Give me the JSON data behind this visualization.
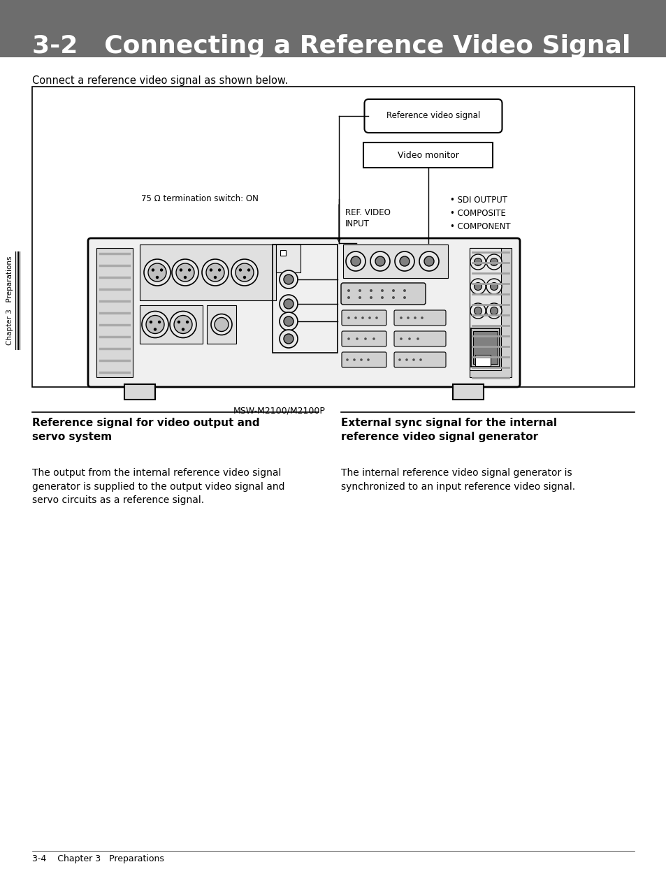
{
  "title": "3-2   Connecting a Reference Video Signal",
  "title_bg": "#6d6d6d",
  "title_color": "#ffffff",
  "page_bg": "#ffffff",
  "intro_text": "Connect a reference video signal as shown below.",
  "label_ref_signal": "Reference video signal",
  "label_video_monitor": "Video monitor",
  "label_75ohm": "75 Ω termination switch: ON",
  "label_ref_video_input": "REF. VIDEO\nINPUT",
  "label_sdi": "• SDI OUTPUT\n• COMPOSITE\n• COMPONENT",
  "label_model": "MSW-M2100/M2100P",
  "section1_title": "Reference signal for video output and\nservo system",
  "section1_body": "The output from the internal reference video signal\ngenerator is supplied to the output video signal and\nservo circuits as a reference signal.",
  "section2_title": "External sync signal for the internal\nreference video signal generator",
  "section2_body": "The internal reference video signal generator is\nsynchronized to an input reference video signal.",
  "footer_text": "3-4    Chapter 3   Preparations",
  "sidebar_text": "Chapter 3   Preparations"
}
